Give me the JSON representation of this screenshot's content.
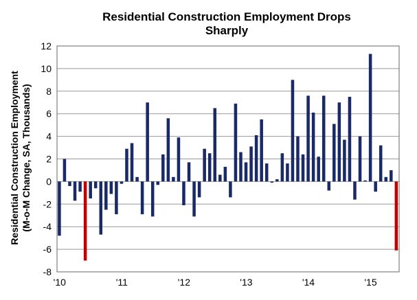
{
  "chart_data": {
    "type": "bar",
    "title": [
      "Residential Construction Employment Drops",
      "Sharply"
    ],
    "ylabel": [
      "Residential Construction Employment",
      "(M-o-M Change, SA, Thousands)"
    ],
    "xlabel": "",
    "ylim": [
      -8,
      12
    ],
    "yticks": [
      -8,
      -6,
      -4,
      -2,
      0,
      2,
      4,
      6,
      8,
      10,
      12
    ],
    "xtick_labels": [
      "'10",
      "'11",
      "'12",
      "'13",
      "'14",
      "'15"
    ],
    "xtick_index": [
      0,
      12,
      24,
      36,
      48,
      60
    ],
    "grid": true,
    "colors": {
      "default": "#1a2a66",
      "highlight": "#c00000"
    },
    "highlight_index": [
      5,
      65
    ],
    "values": [
      -4.8,
      2.0,
      -0.4,
      -1.7,
      -0.9,
      -7.0,
      -1.5,
      -0.6,
      -4.7,
      -2.5,
      -1.1,
      -2.9,
      -0.2,
      2.9,
      3.4,
      0.4,
      -2.9,
      7.0,
      -3.1,
      -0.3,
      2.4,
      5.6,
      0.4,
      3.9,
      -2.1,
      1.7,
      -3.1,
      -1.4,
      2.9,
      2.5,
      6.5,
      0.6,
      1.3,
      -1.4,
      6.9,
      2.6,
      1.7,
      3.1,
      4.1,
      5.5,
      1.6,
      -0.1,
      0.2,
      2.5,
      1.6,
      9.0,
      4.0,
      2.4,
      7.6,
      6.1,
      2.2,
      7.6,
      -0.8,
      5.1,
      7.0,
      3.7,
      7.5,
      -1.6,
      4.0,
      0.1,
      11.3,
      -0.9,
      3.2,
      0.4,
      1.0,
      -6.1
    ]
  }
}
